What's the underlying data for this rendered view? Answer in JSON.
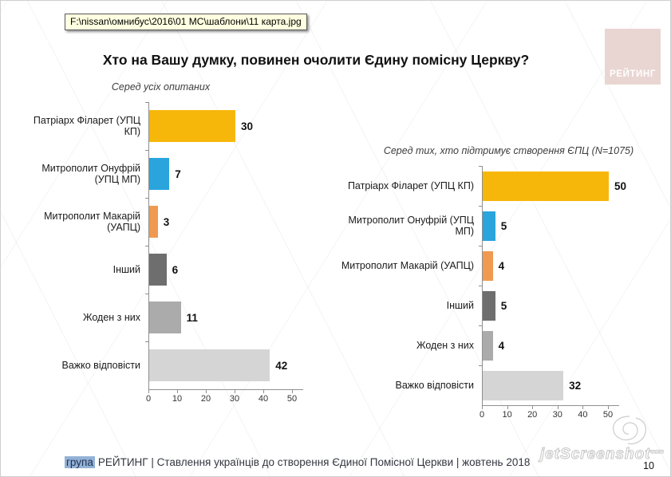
{
  "tooltip": {
    "path": "F:\\nissan\\омнибус\\2016\\01 МС\\шаблони\\11 карта.jpg"
  },
  "title": "Хто на Вашу думку, повинен очолити Єдину помісну Церкву?",
  "logo": {
    "label": "РЕЙТИНГ",
    "bg": "#E9D5D2"
  },
  "chart_data": [
    {
      "type": "bar",
      "orientation": "horizontal",
      "title": "Серед усіх опитаних",
      "categories": [
        "Патріарх Філарет (УПЦ КП)",
        "Митрополит Онуфрій (УПЦ МП)",
        "Митрополит Макарій (УАПЦ)",
        "Інший",
        "Жоден з них",
        "Важко відповісти"
      ],
      "values": [
        30,
        7,
        3,
        6,
        11,
        42
      ],
      "colors": [
        "#F7B70A",
        "#29A4DC",
        "#EF9A50",
        "#6E6E6E",
        "#ABABAB",
        "#D5D5D5"
      ],
      "xlim": [
        0,
        50
      ],
      "xticks": [
        0,
        10,
        20,
        30,
        40,
        50
      ],
      "grid": false,
      "legend": "none"
    },
    {
      "type": "bar",
      "orientation": "horizontal",
      "title": "Серед тих, хто підтримує створення ЄПЦ (N=1075)",
      "categories": [
        "Патріарх Філарет (УПЦ КП)",
        "Митрополит Онуфрій (УПЦ МП)",
        "Митрополит Макарій (УАПЦ)",
        "Інший",
        "Жоден з них",
        "Важко відповісти"
      ],
      "values": [
        50,
        5,
        4,
        5,
        4,
        32
      ],
      "colors": [
        "#F7B70A",
        "#29A4DC",
        "#EF9A50",
        "#6E6E6E",
        "#ABABAB",
        "#D5D5D5"
      ],
      "xlim": [
        0,
        50
      ],
      "xticks": [
        0,
        10,
        20,
        30,
        40,
        50
      ],
      "grid": false,
      "legend": "none"
    }
  ],
  "footer": {
    "highlight": "група",
    "rest": "РЕЙТИНГ | Ставлення українців до створення Єдиної Помісної Церкви | жовтень 2018"
  },
  "page_number": "10",
  "watermark": {
    "text": "jetScreenshot",
    "tld": "com"
  }
}
